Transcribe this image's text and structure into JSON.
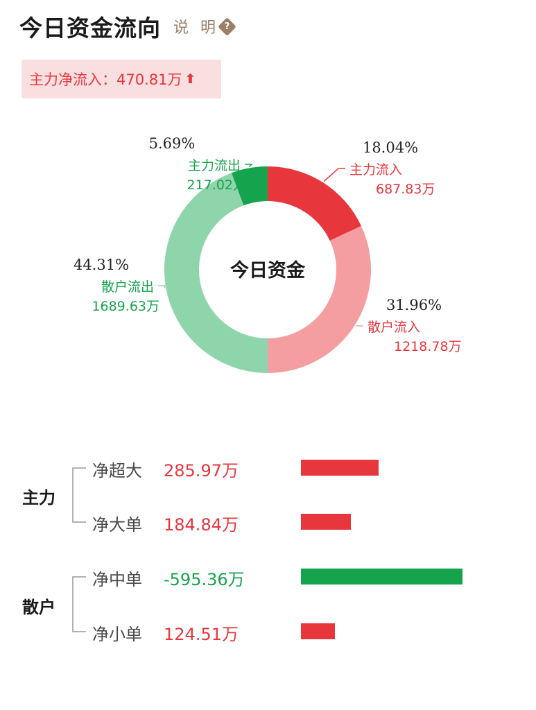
{
  "header": {
    "title": "今日资金流向",
    "explain_label": "说 明",
    "help_glyph": "?"
  },
  "net_inflow": {
    "label": "主力净流入：470.81万",
    "arrow": "⬆"
  },
  "colors": {
    "red": "#e8363d",
    "light_red": "#f59ea2",
    "green": "#16a34e",
    "light_green": "#8fd5ab",
    "explain": "#9b7f67",
    "net_bg": "#f9dfe0"
  },
  "chart_data": [
    {
      "type": "pie",
      "center_label": "今日资金",
      "slices": [
        {
          "name": "主力流入",
          "percent": 18.04,
          "amount": "687.83万",
          "percent_label": "18.04%",
          "color": "#e8363d"
        },
        {
          "name": "散户流入",
          "percent": 31.96,
          "amount": "1218.78万",
          "percent_label": "31.96%",
          "color": "#f59ea2"
        },
        {
          "name": "散户流出",
          "percent": 44.31,
          "amount": "1689.63万",
          "percent_label": "44.31%",
          "color": "#8fd5ab"
        },
        {
          "name": "主力流出",
          "percent": 5.69,
          "amount": "217.02万",
          "percent_label": "5.69%",
          "color": "#16a34e"
        }
      ]
    },
    {
      "type": "bar",
      "orientation": "horizontal",
      "groups": [
        {
          "name": "主力",
          "rows": [
            {
              "label": "净超大",
              "value": 285.97,
              "display": "285.97万",
              "color": "#e8363d"
            },
            {
              "label": "净大单",
              "value": 184.84,
              "display": "184.84万",
              "color": "#e8363d"
            }
          ]
        },
        {
          "name": "散户",
          "rows": [
            {
              "label": "净中单",
              "value": -595.36,
              "display": "-595.36万",
              "color": "#16a34e"
            },
            {
              "label": "净小单",
              "value": 124.51,
              "display": "124.51万",
              "color": "#e8363d"
            }
          ]
        }
      ]
    }
  ]
}
